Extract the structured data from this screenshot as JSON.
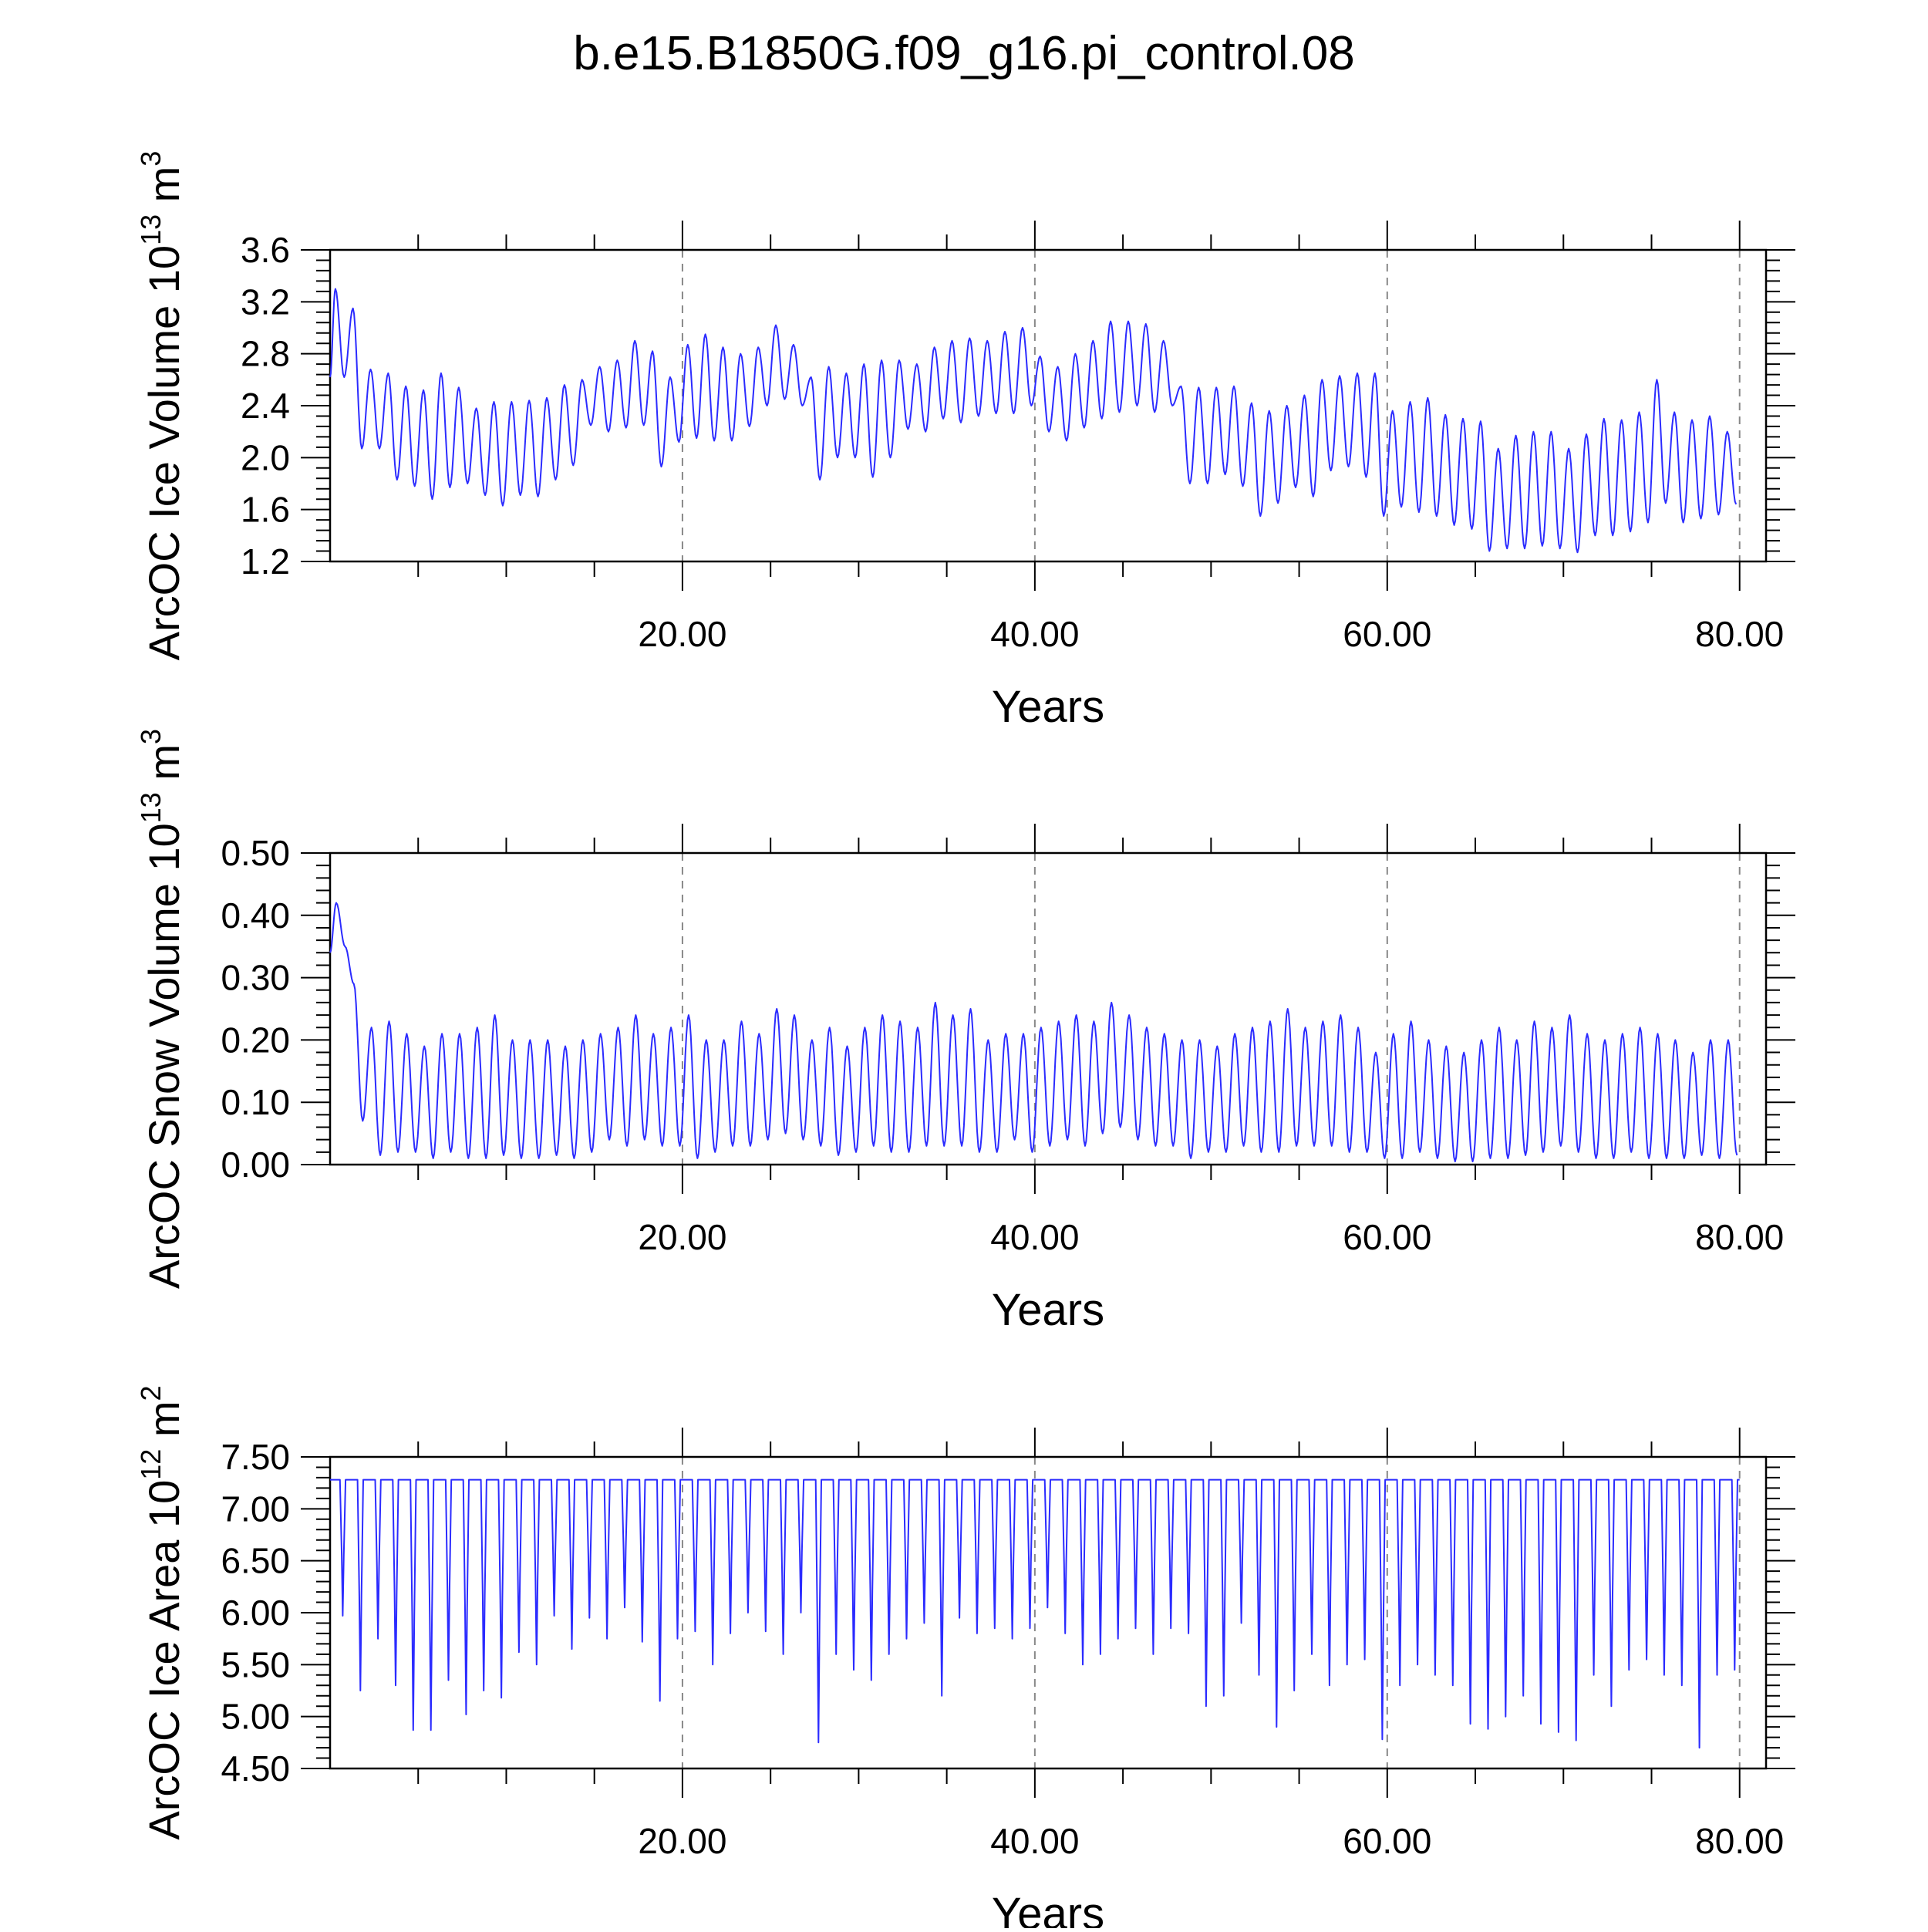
{
  "title": "b.e15.B1850G.f09_g16.pi_control.08",
  "colors": {
    "line": "#2b2bff",
    "axis": "#000000",
    "grid": "#888888"
  },
  "chart_data": [
    {
      "type": "line",
      "ylabel": {
        "main": "ArcOC Ice Volume 10",
        "sup": "13",
        "unit": " m",
        "unit_sup": "3"
      },
      "xlabel": "Years",
      "xlim": [
        0,
        81.5
      ],
      "ylim": [
        1.2,
        3.6
      ],
      "x_ticks": [
        20,
        40,
        60,
        80
      ],
      "x_tick_labels": [
        "20.00",
        "40.00",
        "60.00",
        "80.00"
      ],
      "y_ticks": [
        1.2,
        1.6,
        2.0,
        2.4,
        2.8,
        3.2,
        3.6
      ],
      "y_tick_labels": [
        "1.2",
        "1.6",
        "2.0",
        "2.4",
        "2.8",
        "3.2",
        "3.6"
      ],
      "grid": "vertical dashed at major x ticks",
      "series": [
        {
          "cycle": "annual",
          "x_start": 0,
          "peak_phase": 0.3,
          "maxima": [
            3.3,
            3.15,
            2.68,
            2.65,
            2.55,
            2.52,
            2.65,
            2.54,
            2.38,
            2.43,
            2.43,
            2.44,
            2.46,
            2.56,
            2.6,
            2.7,
            2.75,
            2.9,
            2.82,
            2.62,
            2.87,
            2.95,
            2.85,
            2.8,
            2.85,
            3.02,
            2.87,
            2.62,
            2.7,
            2.65,
            2.72,
            2.75,
            2.75,
            2.72,
            2.85,
            2.9,
            2.92,
            2.9,
            2.97,
            3.0,
            2.78,
            2.7,
            2.8,
            2.9,
            3.05,
            3.05,
            3.03,
            2.9,
            2.55,
            2.54,
            2.54,
            2.55,
            2.42,
            2.36,
            2.4,
            2.48,
            2.6,
            2.63,
            2.65,
            2.65,
            2.36,
            2.43,
            2.46,
            2.33,
            2.3,
            2.28,
            2.07,
            2.17,
            2.2,
            2.2,
            2.07,
            2.18,
            2.3,
            2.29,
            2.35,
            2.6,
            2.35,
            2.29,
            2.32,
            2.2
          ],
          "minima": [
            2.62,
            2.07,
            2.07,
            1.83,
            1.78,
            1.68,
            1.77,
            1.8,
            1.71,
            1.63,
            1.71,
            1.7,
            1.83,
            1.94,
            2.25,
            2.2,
            2.23,
            2.25,
            1.93,
            2.12,
            2.15,
            2.13,
            2.13,
            2.24,
            2.4,
            2.45,
            2.4,
            1.83,
            2.0,
            2.0,
            1.85,
            2.0,
            2.22,
            2.2,
            2.3,
            2.27,
            2.32,
            2.34,
            2.34,
            2.4,
            2.2,
            2.13,
            2.23,
            2.3,
            2.35,
            2.4,
            2.35,
            2.4,
            1.8,
            1.8,
            1.87,
            1.78,
            1.55,
            1.65,
            1.77,
            1.7,
            1.9,
            1.93,
            1.85,
            1.55,
            1.62,
            1.58,
            1.55,
            1.48,
            1.45,
            1.28,
            1.3,
            1.3,
            1.32,
            1.3,
            1.27,
            1.4,
            1.4,
            1.43,
            1.5,
            1.65,
            1.5,
            1.53,
            1.56,
            1.64
          ]
        }
      ]
    },
    {
      "type": "line",
      "ylabel": {
        "main": "ArcOC Snow Volume 10",
        "sup": "13",
        "unit": " m",
        "unit_sup": "3"
      },
      "xlabel": "Years",
      "xlim": [
        0,
        81.5
      ],
      "ylim": [
        0.0,
        0.5
      ],
      "x_ticks": [
        20,
        40,
        60,
        80
      ],
      "x_tick_labels": [
        "20.00",
        "40.00",
        "60.00",
        "80.00"
      ],
      "y_ticks": [
        0.0,
        0.1,
        0.2,
        0.3,
        0.4,
        0.5
      ],
      "y_tick_labels": [
        "0.00",
        "0.10",
        "0.20",
        "0.30",
        "0.40",
        "0.50"
      ],
      "grid": "vertical dashed at major x ticks",
      "series": [
        {
          "cycle": "annual",
          "x_start": 0,
          "peak_phase": 0.35,
          "maxima": [
            0.42,
            0.29,
            0.22,
            0.23,
            0.21,
            0.19,
            0.21,
            0.21,
            0.22,
            0.24,
            0.2,
            0.2,
            0.2,
            0.19,
            0.2,
            0.21,
            0.22,
            0.24,
            0.21,
            0.22,
            0.24,
            0.2,
            0.2,
            0.23,
            0.21,
            0.25,
            0.24,
            0.2,
            0.22,
            0.19,
            0.22,
            0.24,
            0.23,
            0.22,
            0.26,
            0.24,
            0.25,
            0.2,
            0.21,
            0.21,
            0.22,
            0.23,
            0.24,
            0.23,
            0.26,
            0.24,
            0.22,
            0.21,
            0.2,
            0.2,
            0.19,
            0.21,
            0.22,
            0.23,
            0.25,
            0.22,
            0.23,
            0.24,
            0.22,
            0.18,
            0.21,
            0.23,
            0.2,
            0.19,
            0.18,
            0.2,
            0.22,
            0.2,
            0.23,
            0.22,
            0.24,
            0.21,
            0.2,
            0.21,
            0.22,
            0.21,
            0.2,
            0.18,
            0.2,
            0.2
          ],
          "minima": [
            0.35,
            0.07,
            0.015,
            0.02,
            0.02,
            0.01,
            0.02,
            0.01,
            0.01,
            0.015,
            0.01,
            0.01,
            0.015,
            0.01,
            0.02,
            0.04,
            0.03,
            0.04,
            0.03,
            0.03,
            0.01,
            0.02,
            0.03,
            0.03,
            0.04,
            0.05,
            0.04,
            0.03,
            0.015,
            0.02,
            0.03,
            0.02,
            0.02,
            0.03,
            0.03,
            0.03,
            0.02,
            0.02,
            0.04,
            0.02,
            0.03,
            0.04,
            0.03,
            0.05,
            0.06,
            0.04,
            0.03,
            0.03,
            0.01,
            0.02,
            0.02,
            0.03,
            0.02,
            0.02,
            0.03,
            0.03,
            0.03,
            0.02,
            0.02,
            0.01,
            0.01,
            0.02,
            0.01,
            0.005,
            0.005,
            0.01,
            0.01,
            0.015,
            0.02,
            0.03,
            0.02,
            0.01,
            0.01,
            0.02,
            0.01,
            0.01,
            0.01,
            0.015,
            0.01,
            0.015
          ],
          "start_value": 0.34
        }
      ]
    },
    {
      "type": "line",
      "ylabel": {
        "main": "ArcOC Ice Area 10",
        "sup": "12",
        "unit": " m",
        "unit_sup": "2"
      },
      "xlabel": "Years",
      "xlim": [
        0,
        81.5
      ],
      "ylim": [
        4.5,
        7.5
      ],
      "x_ticks": [
        20,
        40,
        60,
        80
      ],
      "x_tick_labels": [
        "20.00",
        "40.00",
        "60.00",
        "80.00"
      ],
      "y_ticks": [
        4.5,
        5.0,
        5.5,
        6.0,
        6.5,
        7.0,
        7.5
      ],
      "y_tick_labels": [
        "4.50",
        "5.00",
        "5.50",
        "6.00",
        "6.50",
        "7.00",
        "7.50"
      ],
      "grid": "vertical dashed at major x ticks",
      "series": [
        {
          "cycle": "annual",
          "x_start": 0,
          "plateau": 7.28,
          "trough_phase": 0.72,
          "minima": [
            5.97,
            5.25,
            5.75,
            5.3,
            4.87,
            4.87,
            5.35,
            5.02,
            5.25,
            5.18,
            5.62,
            5.5,
            5.97,
            5.65,
            5.95,
            5.75,
            6.05,
            5.72,
            5.15,
            5.75,
            5.82,
            5.5,
            5.8,
            6.0,
            5.82,
            5.6,
            6.0,
            4.75,
            5.6,
            5.45,
            5.35,
            5.6,
            5.75,
            5.9,
            5.2,
            5.95,
            5.8,
            5.85,
            5.75,
            5.85,
            6.05,
            5.8,
            5.5,
            5.6,
            5.75,
            5.85,
            5.6,
            5.85,
            5.8,
            5.1,
            5.2,
            5.9,
            5.4,
            4.9,
            5.25,
            5.6,
            5.3,
            5.5,
            5.55,
            4.78,
            5.3,
            5.5,
            5.4,
            5.3,
            4.93,
            4.88,
            5.0,
            5.2,
            4.93,
            4.85,
            4.77,
            5.4,
            5.1,
            5.45,
            5.55,
            5.4,
            5.3,
            4.7,
            5.4,
            5.45
          ]
        }
      ]
    }
  ]
}
